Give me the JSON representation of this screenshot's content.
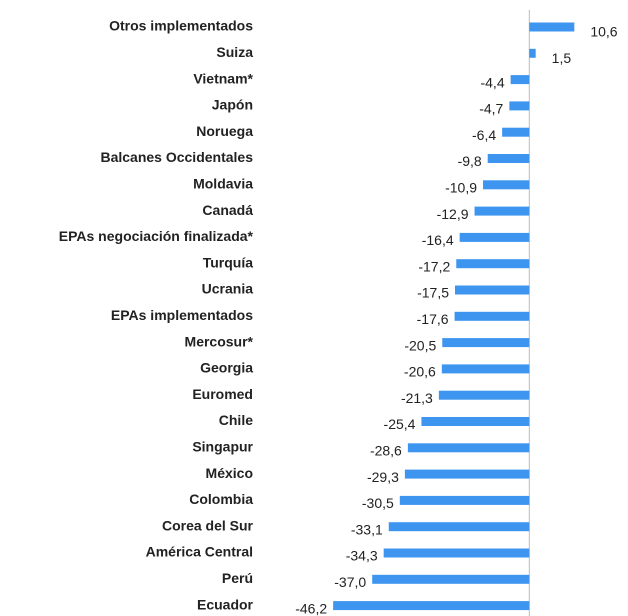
{
  "chart_data": {
    "type": "barh",
    "categories": [
      "Otros implementados",
      "Suiza",
      "Vietnam*",
      "Japón",
      "Noruega",
      "Balcanes Occidentales",
      "Moldavia",
      "Canadá",
      "EPAs negociación finalizada*",
      "Turquía",
      "Ucrania",
      "EPAs implementados",
      "Mercosur*",
      "Georgia",
      "Euromed",
      "Chile",
      "Singapur",
      "México",
      "Colombia",
      "Corea del Sur",
      "América Central",
      "Perú",
      "Ecuador"
    ],
    "values": [
      10.6,
      1.5,
      -4.4,
      -4.7,
      -6.4,
      -9.8,
      -10.9,
      -12.9,
      -16.4,
      -17.2,
      -17.5,
      -17.6,
      -20.5,
      -20.6,
      -21.3,
      -25.4,
      -28.6,
      -29.3,
      -30.5,
      -33.1,
      -34.3,
      -37.0,
      -46.2
    ],
    "value_labels": [
      "10,6",
      "1,5",
      "-4,4",
      "-4,7",
      "-6,4",
      "-9,8",
      "-10,9",
      "-12,9",
      "-16,4",
      "-17,2",
      "-17,5",
      "-17,6",
      "-20,5",
      "-20,6",
      "-21,3",
      "-25,4",
      "-28,6",
      "-29,3",
      "-30,5",
      "-33,1",
      "-34,3",
      "-37,0",
      "-46,2"
    ],
    "color": "#3d95f0",
    "xlim": [
      -50,
      15
    ]
  }
}
